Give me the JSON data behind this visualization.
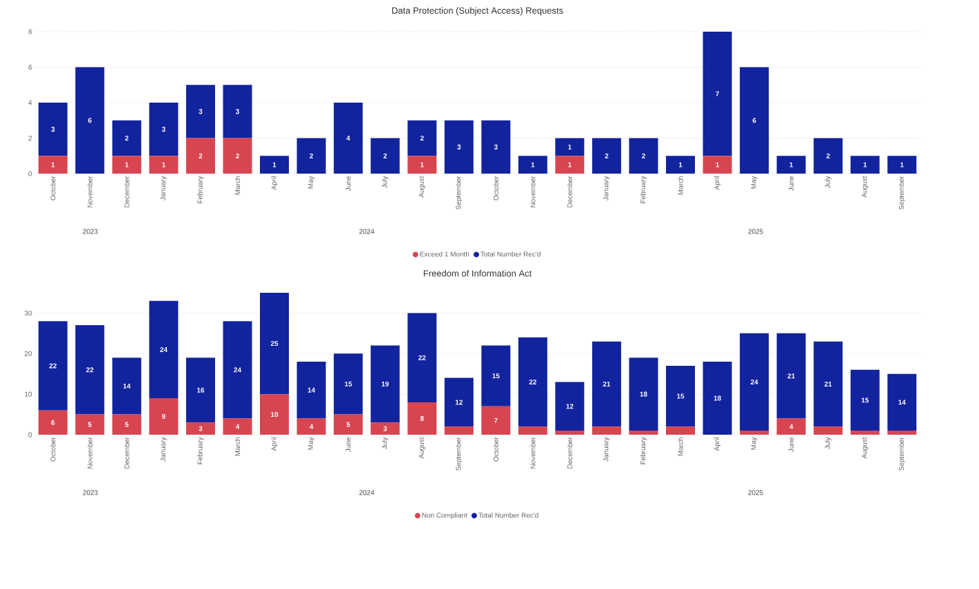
{
  "chart_data": [
    {
      "type": "bar",
      "stacked": true,
      "title": "Data Protection (Subject Access) Requests",
      "categories": [
        "October",
        "November",
        "December",
        "January",
        "February",
        "March",
        "April",
        "May",
        "June",
        "July",
        "August",
        "September",
        "October",
        "November",
        "December",
        "January",
        "February",
        "March",
        "April",
        "May",
        "June",
        "July",
        "August",
        "September"
      ],
      "series": [
        {
          "name": "Exceed 1 Month",
          "color": "#d64550",
          "values": [
            1,
            0,
            1,
            1,
            2,
            2,
            0,
            0,
            0,
            0,
            1,
            0,
            0,
            0,
            1,
            0,
            0,
            0,
            1,
            0,
            0,
            0,
            0,
            0
          ],
          "value_labels": [
            "1",
            null,
            "1",
            "1",
            "2",
            "2",
            null,
            null,
            null,
            null,
            "1",
            null,
            null,
            null,
            "1",
            null,
            null,
            null,
            "1",
            null,
            null,
            null,
            null,
            null
          ]
        },
        {
          "name": "Total Number Rec'd",
          "color": "#12239e",
          "values": [
            3,
            6,
            2,
            3,
            3,
            3,
            1,
            2,
            4,
            2,
            2,
            3,
            3,
            1,
            1,
            2,
            2,
            1,
            7,
            6,
            1,
            2,
            1,
            1
          ],
          "value_labels": [
            "3",
            "6",
            "2",
            "3",
            "3",
            "3",
            "1",
            "2",
            "4",
            "2",
            "2",
            "3",
            "3",
            "1",
            "1",
            "2",
            "2",
            "1",
            "7",
            "6",
            "1",
            "2",
            "1",
            "1"
          ]
        }
      ],
      "ylim": [
        0,
        8
      ],
      "yticks": [
        0,
        2,
        4,
        6,
        8
      ],
      "grid": "y",
      "legend": "bottom",
      "annotations": [
        "2023",
        "2024",
        "2025"
      ]
    },
    {
      "type": "bar",
      "stacked": true,
      "title": "Freedom of Information Act",
      "categories": [
        "October",
        "November",
        "December",
        "January",
        "February",
        "March",
        "April",
        "May",
        "June",
        "July",
        "August",
        "September",
        "October",
        "November",
        "December",
        "January",
        "February",
        "March",
        "April",
        "May",
        "June",
        "July",
        "August",
        "September"
      ],
      "series": [
        {
          "name": "Non Compliant",
          "color": "#d64550",
          "values": [
            6,
            5,
            5,
            9,
            3,
            4,
            10,
            4,
            5,
            3,
            8,
            2,
            7,
            2,
            1,
            2,
            1,
            2,
            0,
            1,
            4,
            2,
            1,
            1
          ],
          "value_labels": [
            "6",
            "5",
            "5",
            "9",
            "3",
            "4",
            "10",
            "4",
            "5",
            "3",
            "8",
            null,
            "7",
            null,
            null,
            null,
            null,
            null,
            null,
            null,
            "4",
            null,
            null,
            null
          ]
        },
        {
          "name": "Total Number Rec'd",
          "color": "#12239e",
          "values": [
            22,
            22,
            14,
            24,
            16,
            24,
            25,
            14,
            15,
            19,
            22,
            12,
            15,
            22,
            12,
            21,
            18,
            15,
            18,
            24,
            21,
            21,
            15,
            14
          ],
          "value_labels": [
            "22",
            "22",
            "14",
            "24",
            "16",
            "24",
            "25",
            "14",
            "15",
            "19",
            "22",
            "12",
            "15",
            "22",
            "12",
            "21",
            "18",
            "15",
            "18",
            "24",
            "21",
            "21",
            "15",
            "14"
          ]
        }
      ],
      "ylim": [
        0,
        35
      ],
      "yticks": [
        0,
        10,
        20,
        30
      ],
      "grid": "y",
      "legend": "bottom",
      "annotations": [
        "2023",
        "2024",
        "2025"
      ]
    }
  ]
}
